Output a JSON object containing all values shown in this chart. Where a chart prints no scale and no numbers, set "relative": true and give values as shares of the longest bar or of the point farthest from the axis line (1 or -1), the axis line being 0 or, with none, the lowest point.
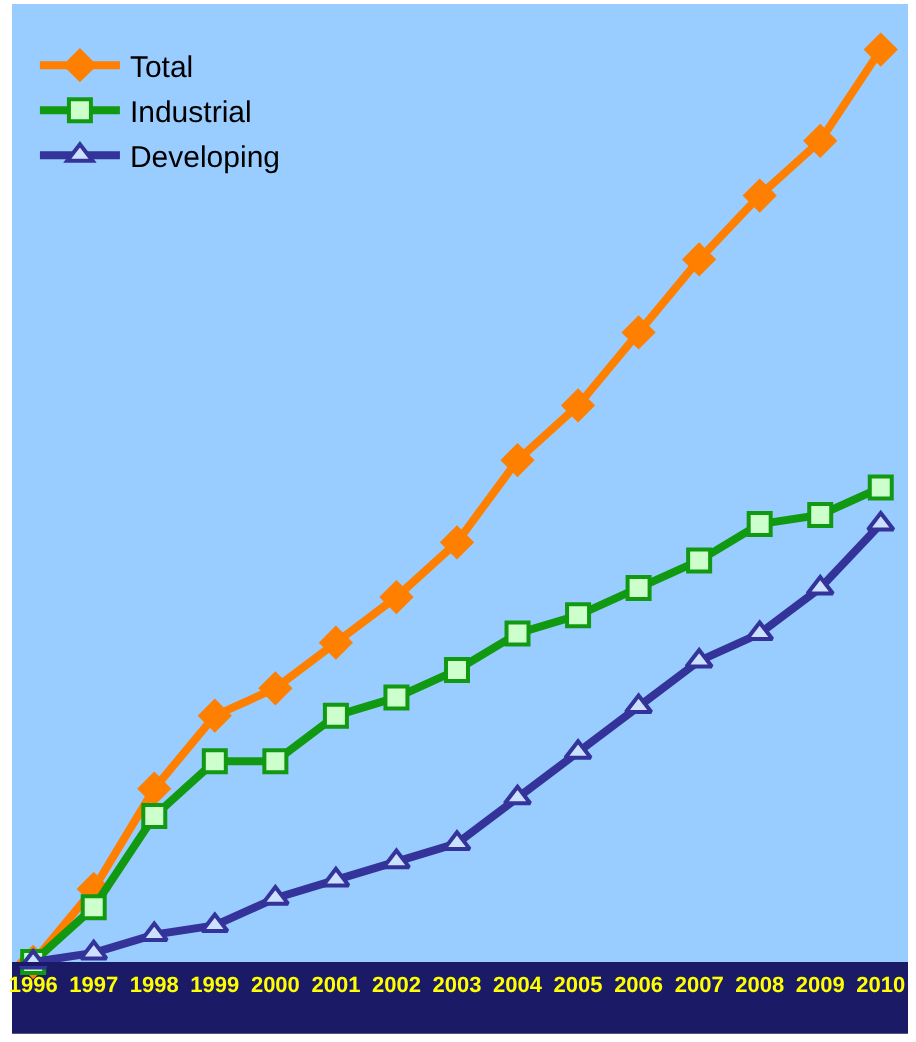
{
  "chart_data": {
    "type": "line",
    "relative": true,
    "categories": [
      "1996",
      "1997",
      "1998",
      "1999",
      "2000",
      "2001",
      "2002",
      "2003",
      "2004",
      "2005",
      "2006",
      "2007",
      "2008",
      "2009",
      "2010"
    ],
    "series": [
      {
        "name": "Total",
        "color": "#ff7f00",
        "marker": "diamond",
        "values": [
          0,
          0.08,
          0.19,
          0.27,
          0.3,
          0.35,
          0.4,
          0.46,
          0.55,
          0.61,
          0.69,
          0.77,
          0.84,
          0.9,
          1
        ]
      },
      {
        "name": "Industrial",
        "color": "#119911",
        "marker": "square",
        "values": [
          0,
          0.06,
          0.16,
          0.22,
          0.22,
          0.27,
          0.29,
          0.32,
          0.36,
          0.38,
          0.41,
          0.44,
          0.48,
          0.49,
          0.52
        ]
      },
      {
        "name": "Developing",
        "color": "#333399",
        "marker": "triangle",
        "values": [
          0,
          0.01,
          0.03,
          0.04,
          0.07,
          0.09,
          0.11,
          0.13,
          0.18,
          0.23,
          0.28,
          0.33,
          0.36,
          0.41,
          0.48
        ]
      }
    ],
    "legend": "top left",
    "grid": false
  }
}
